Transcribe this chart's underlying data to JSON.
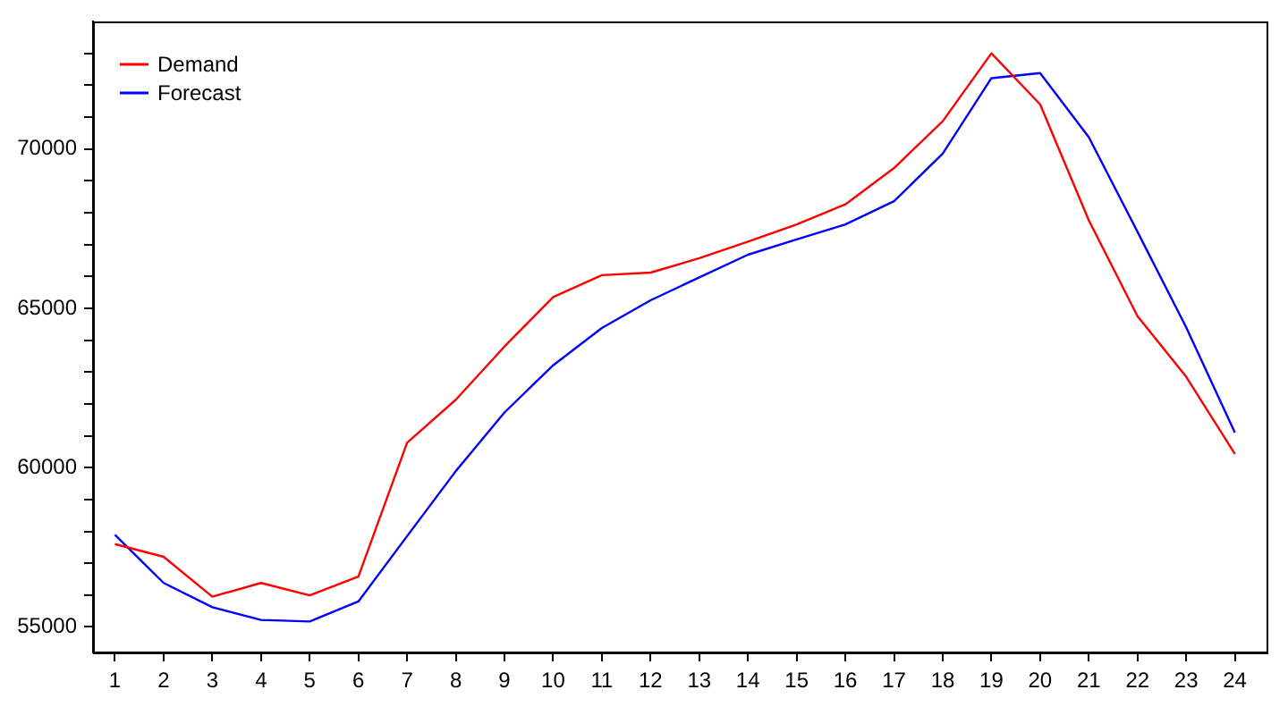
{
  "chart_data": {
    "type": "line",
    "x": [
      1,
      2,
      3,
      4,
      5,
      6,
      7,
      8,
      9,
      10,
      11,
      12,
      13,
      14,
      15,
      16,
      17,
      18,
      19,
      20,
      21,
      22,
      23,
      24
    ],
    "xlim": [
      0.55,
      24.65
    ],
    "xticks": [
      1,
      2,
      3,
      4,
      5,
      6,
      7,
      8,
      9,
      10,
      11,
      12,
      13,
      14,
      15,
      16,
      17,
      18,
      19,
      20,
      21,
      22,
      23,
      24
    ],
    "ylim": [
      54200,
      74000
    ],
    "yticks": [
      55000,
      {
        "value": 56000,
        "label": null
      },
      {
        "value": 57000,
        "label": null
      },
      {
        "value": 58000,
        "label": null
      },
      {
        "value": 59000,
        "label": null
      },
      60000,
      {
        "value": 61000,
        "label": null
      },
      {
        "value": 62000,
        "label": null
      },
      {
        "value": 63000,
        "label": null
      },
      {
        "value": 64000,
        "label": null
      },
      65000,
      {
        "value": 66000,
        "label": null
      },
      {
        "value": 67000,
        "label": null
      },
      {
        "value": 68000,
        "label": null
      },
      {
        "value": 69000,
        "label": null
      },
      70000,
      {
        "value": 71000,
        "label": null
      },
      {
        "value": 72000,
        "label": null
      },
      {
        "value": 73000,
        "label": null
      }
    ],
    "series": [
      {
        "name": "Demand",
        "color": "#ff0000",
        "values": [
          57600,
          57200,
          55950,
          56380,
          55990,
          56580,
          60780,
          62130,
          63800,
          65350,
          66040,
          66120,
          66570,
          67090,
          67630,
          68260,
          69400,
          70870,
          73000,
          71400,
          67760,
          64750,
          62850,
          60430
        ]
      },
      {
        "name": "Forecast",
        "color": "#0000ff",
        "values": [
          57890,
          56380,
          55620,
          55220,
          55170,
          55800,
          57850,
          59890,
          61730,
          63210,
          64380,
          65250,
          65970,
          66680,
          67160,
          67630,
          68360,
          69850,
          72220,
          72380,
          70370,
          67400,
          64400,
          61100
        ]
      }
    ],
    "legend": "top left",
    "grid": false,
    "marker": "none",
    "line_style": "solid"
  }
}
